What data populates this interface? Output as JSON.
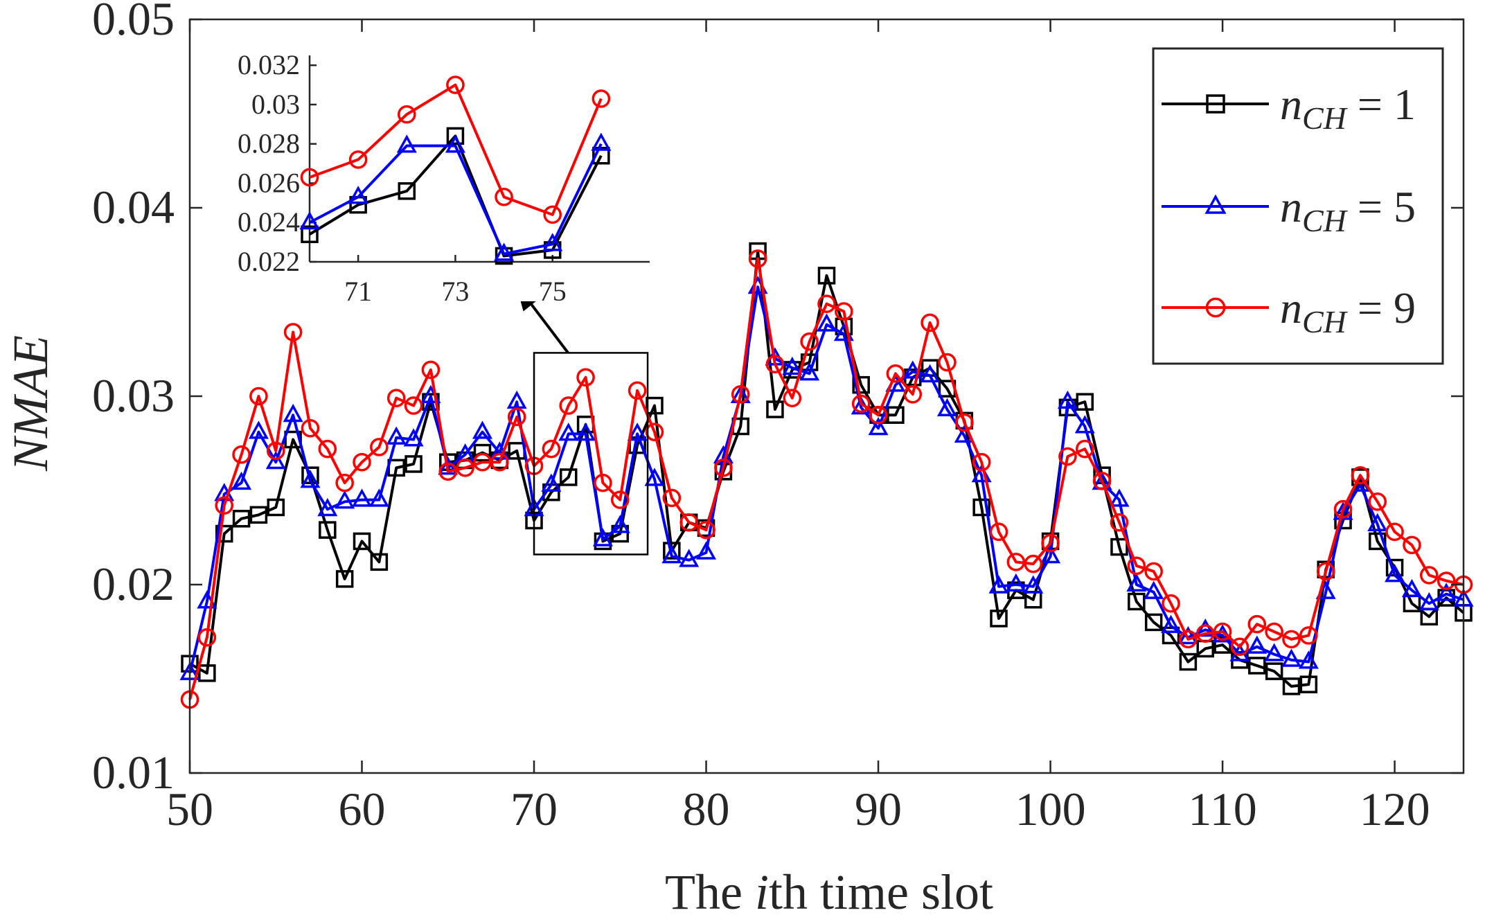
{
  "chart_data": {
    "type": "line",
    "xlabel": "The ith time slot",
    "xlabel_parts": [
      "The ",
      "i",
      "th time slot"
    ],
    "ylabel": "NMAE",
    "xlim": [
      50,
      124
    ],
    "ylim": [
      0.01,
      0.05
    ],
    "xticks": [
      "50",
      "60",
      "70",
      "80",
      "90",
      "100",
      "110",
      "120"
    ],
    "yticks": [
      "0.01",
      "0.02",
      "0.03",
      "0.04",
      "0.05"
    ],
    "grid": false,
    "legend_position": "top-right",
    "x": [
      50,
      51,
      52,
      53,
      54,
      55,
      56,
      57,
      58,
      59,
      60,
      61,
      62,
      63,
      64,
      65,
      66,
      67,
      68,
      69,
      70,
      71,
      72,
      73,
      74,
      75,
      76,
      77,
      78,
      79,
      80,
      81,
      82,
      83,
      84,
      85,
      86,
      87,
      88,
      89,
      90,
      91,
      92,
      93,
      94,
      95,
      96,
      97,
      98,
      99,
      100,
      101,
      102,
      103,
      104,
      105,
      106,
      107,
      108,
      109,
      110,
      111,
      112,
      113,
      114,
      115,
      116,
      117,
      118,
      119,
      120,
      121,
      122,
      123,
      124
    ],
    "series": [
      {
        "name": "n_CH = 1",
        "legend_parts": [
          "n",
          "CH",
          " = 1"
        ],
        "color": "#000000",
        "marker": "square",
        "values": [
          0.0158,
          0.0153,
          0.0227,
          0.0235,
          0.0237,
          0.0241,
          0.0277,
          0.0258,
          0.0229,
          0.0203,
          0.0223,
          0.0212,
          0.0262,
          0.0264,
          0.0297,
          0.0265,
          0.0266,
          0.027,
          0.0266,
          0.0271,
          0.0234,
          0.0249,
          0.0257,
          0.0285,
          0.0223,
          0.0227,
          0.0274,
          0.0295,
          0.0218,
          0.0233,
          0.023,
          0.026,
          0.0284,
          0.0377,
          0.0293,
          0.0314,
          0.0318,
          0.0364,
          0.0337,
          0.0306,
          0.029,
          0.029,
          0.031,
          0.0315,
          0.0304,
          0.0287,
          0.0241,
          0.0182,
          0.0197,
          0.0192,
          0.0223,
          0.0294,
          0.0297,
          0.0258,
          0.022,
          0.0191,
          0.018,
          0.0173,
          0.0159,
          0.0166,
          0.0168,
          0.016,
          0.0157,
          0.0154,
          0.0146,
          0.0147,
          0.0208,
          0.0234,
          0.0257,
          0.0223,
          0.0209,
          0.019,
          0.0183,
          0.0193,
          0.0185
        ]
      },
      {
        "name": "n_CH = 5",
        "legend_parts": [
          "n",
          "CH",
          " = 5"
        ],
        "color": "#0000ff",
        "marker": "triangle",
        "values": [
          0.0153,
          0.0191,
          0.0248,
          0.0254,
          0.0281,
          0.0265,
          0.029,
          0.0255,
          0.024,
          0.0244,
          0.0245,
          0.0245,
          0.0278,
          0.0277,
          0.03,
          0.0262,
          0.0269,
          0.0281,
          0.027,
          0.0297,
          0.024,
          0.0253,
          0.028,
          0.028,
          0.0224,
          0.0231,
          0.028,
          0.0256,
          0.0215,
          0.0213,
          0.0217,
          0.0268,
          0.03,
          0.0358,
          0.032,
          0.0315,
          0.0312,
          0.0338,
          0.0333,
          0.0294,
          0.0283,
          0.0306,
          0.0313,
          0.0311,
          0.0293,
          0.0279,
          0.0258,
          0.0199,
          0.02,
          0.0199,
          0.0215,
          0.0297,
          0.0284,
          0.0254,
          0.0245,
          0.02,
          0.0196,
          0.0178,
          0.0172,
          0.0176,
          0.0173,
          0.0163,
          0.0167,
          0.0163,
          0.016,
          0.0159,
          0.0196,
          0.0238,
          0.0253,
          0.0232,
          0.0205,
          0.0197,
          0.019,
          0.0195,
          0.0192
        ]
      },
      {
        "name": "n_CH = 9",
        "legend_parts": [
          "n",
          "CH",
          " = 9"
        ],
        "color": "#ff0000",
        "marker": "circle",
        "values": [
          0.0139,
          0.0172,
          0.0242,
          0.0269,
          0.03,
          0.0271,
          0.0334,
          0.0283,
          0.0272,
          0.0254,
          0.0265,
          0.0273,
          0.0299,
          0.0295,
          0.0314,
          0.026,
          0.0262,
          0.0265,
          0.0265,
          0.0289,
          0.0263,
          0.0272,
          0.0295,
          0.031,
          0.0254,
          0.0245,
          0.0303,
          0.0281,
          0.0246,
          0.0233,
          0.0229,
          0.0262,
          0.0301,
          0.0373,
          0.0317,
          0.0299,
          0.0329,
          0.0349,
          0.0345,
          0.0296,
          0.029,
          0.0312,
          0.0301,
          0.0339,
          0.0318,
          0.0286,
          0.0265,
          0.0228,
          0.0212,
          0.0211,
          0.0222,
          0.0268,
          0.0272,
          0.0255,
          0.0233,
          0.021,
          0.0207,
          0.019,
          0.0171,
          0.0174,
          0.0175,
          0.0167,
          0.0179,
          0.0175,
          0.0171,
          0.0173,
          0.0207,
          0.024,
          0.0258,
          0.0244,
          0.0228,
          0.0221,
          0.0205,
          0.0202,
          0.02
        ]
      }
    ],
    "inset": {
      "xlim": [
        70,
        77
      ],
      "ylim": [
        0.022,
        0.0325
      ],
      "xticks": [
        "71",
        "73",
        "75"
      ],
      "yticks": [
        "0.022",
        "0.024",
        "0.026",
        "0.028",
        "0.03",
        "0.032"
      ],
      "x": [
        70,
        71,
        72,
        73,
        74,
        75,
        76
      ],
      "series": [
        {
          "color": "#000000",
          "marker": "square",
          "values": [
            0.0234,
            0.0249,
            0.0256,
            0.0284,
            0.0223,
            0.0226,
            0.0274
          ]
        },
        {
          "color": "#0000ff",
          "marker": "triangle",
          "values": [
            0.024,
            0.0253,
            0.0279,
            0.0279,
            0.0224,
            0.0229,
            0.028
          ]
        },
        {
          "color": "#ff0000",
          "marker": "circle",
          "values": [
            0.0263,
            0.0272,
            0.0295,
            0.031,
            0.0253,
            0.0244,
            0.0303
          ]
        }
      ],
      "zoom_box": {
        "x": [
          70,
          76.6
        ],
        "y": [
          0.0216,
          0.0323
        ]
      }
    }
  }
}
